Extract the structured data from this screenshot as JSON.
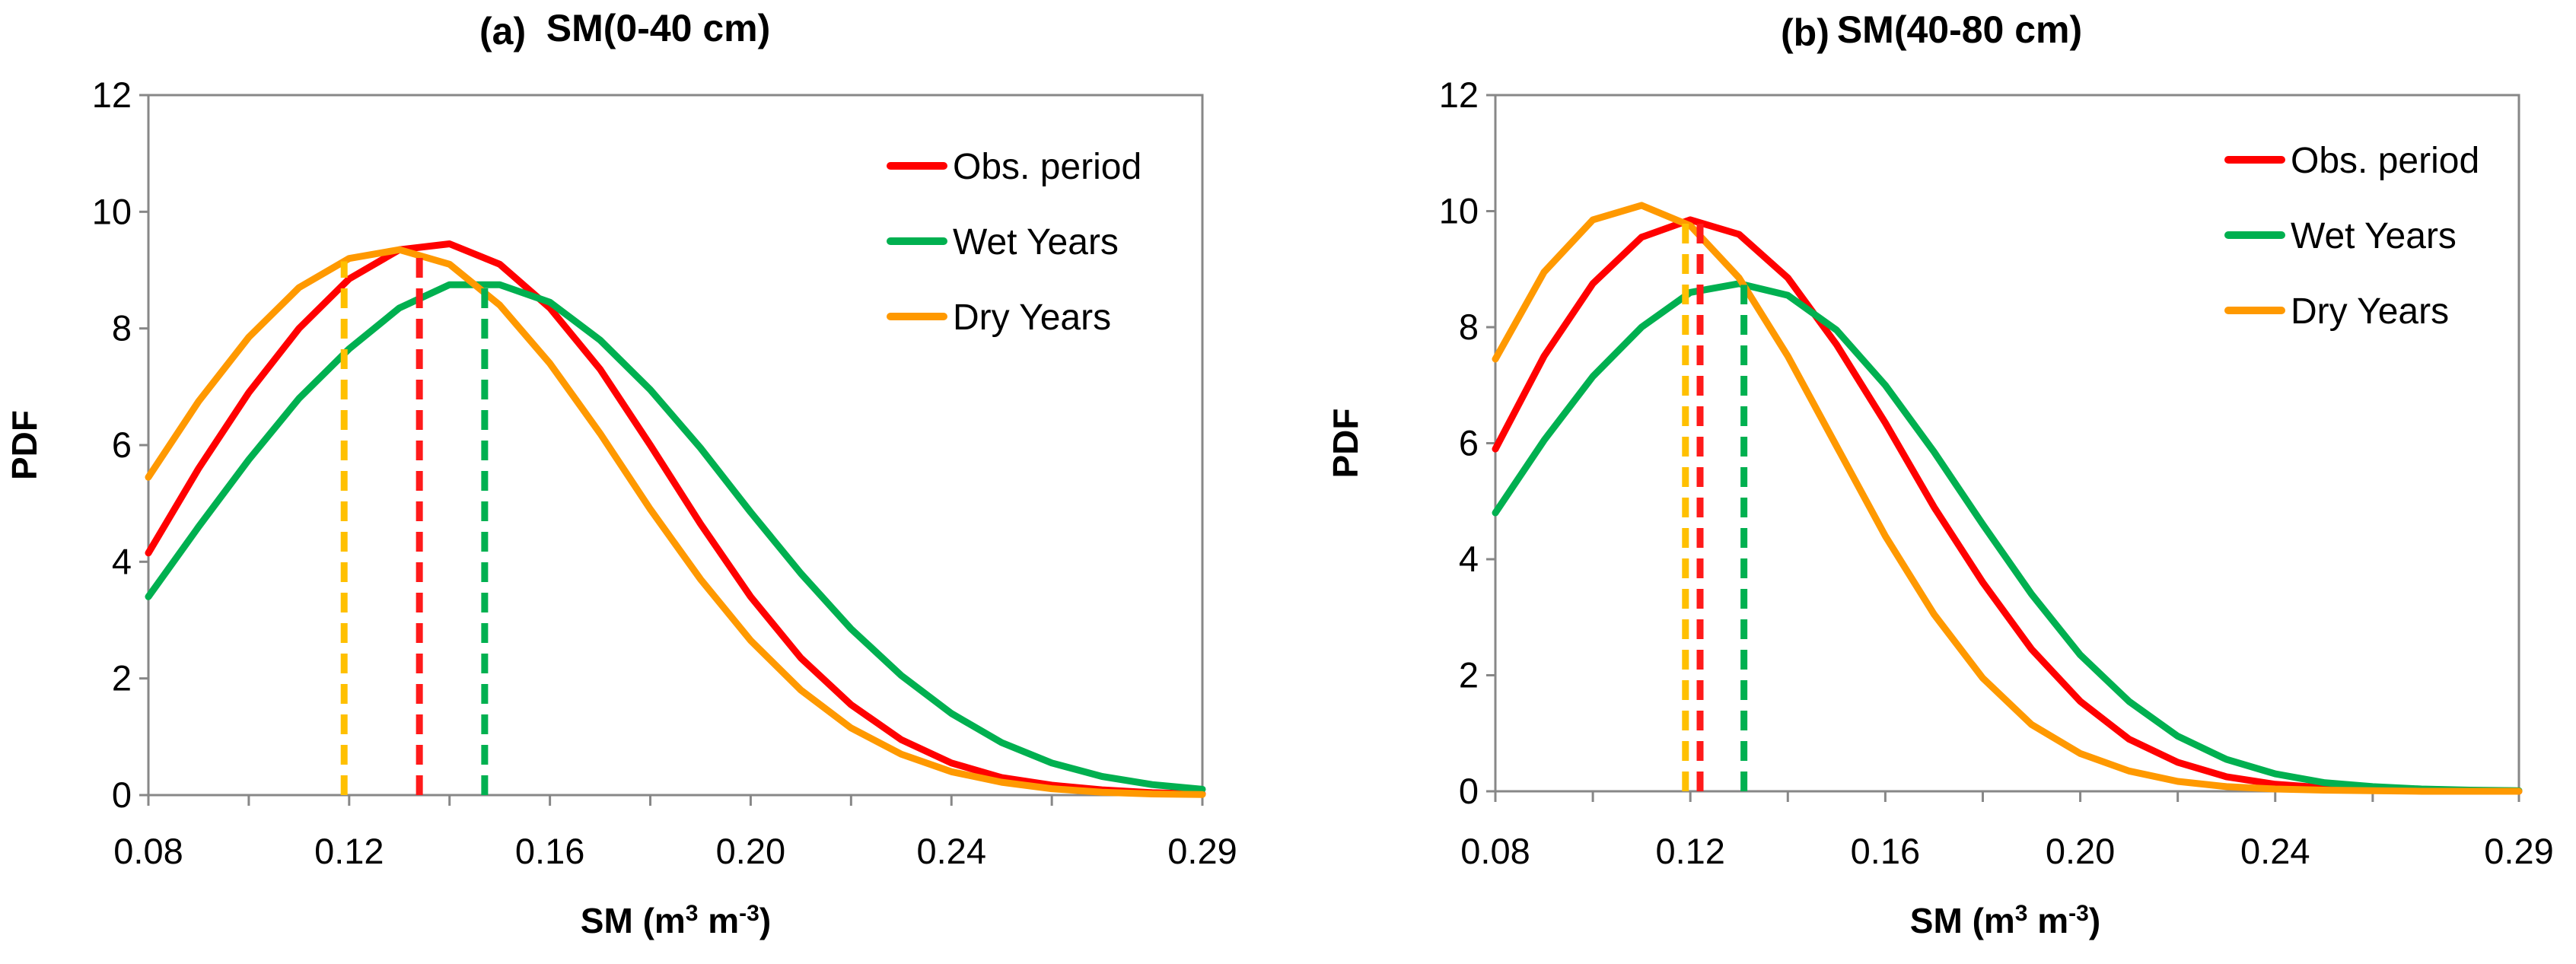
{
  "chart_data": [
    {
      "type": "line",
      "panel_label": "(a)",
      "title": "SM(0-40 cm)",
      "xlabel": "SM (m³ m⁻³)",
      "ylabel": "PDF",
      "xlim": [
        0.08,
        0.29
      ],
      "ylim": [
        0,
        12
      ],
      "x_ticks": [
        0.08,
        0.12,
        0.16,
        0.2,
        0.24,
        0.29
      ],
      "x_tick_labels": [
        "0.08",
        "0.12",
        "0.16",
        "0.20",
        "0.24",
        "0.29"
      ],
      "y_ticks": [
        0,
        2,
        4,
        6,
        8,
        10,
        12
      ],
      "y_tick_labels": [
        "0",
        "2",
        "4",
        "6",
        "8",
        "10",
        "12"
      ],
      "legend_position": "top-right",
      "series": [
        {
          "name": "Obs. period",
          "color": "#ff0000",
          "mean_line": 0.134,
          "mean_color": "#ff1a1a",
          "x": [
            0.08,
            0.09,
            0.1,
            0.11,
            0.12,
            0.13,
            0.14,
            0.15,
            0.16,
            0.17,
            0.18,
            0.19,
            0.2,
            0.21,
            0.22,
            0.23,
            0.24,
            0.25,
            0.26,
            0.27,
            0.28,
            0.29
          ],
          "values": [
            4.15,
            5.6,
            6.9,
            8.0,
            8.85,
            9.35,
            9.45,
            9.1,
            8.35,
            7.3,
            6.0,
            4.65,
            3.4,
            2.35,
            1.55,
            0.95,
            0.55,
            0.3,
            0.17,
            0.09,
            0.04,
            0.02
          ]
        },
        {
          "name": "Wet Years",
          "color": "#00b050",
          "mean_line": 0.147,
          "mean_color": "#00b050",
          "x": [
            0.08,
            0.09,
            0.1,
            0.11,
            0.12,
            0.13,
            0.14,
            0.15,
            0.16,
            0.17,
            0.18,
            0.19,
            0.2,
            0.21,
            0.22,
            0.23,
            0.24,
            0.25,
            0.26,
            0.27,
            0.28,
            0.29
          ],
          "values": [
            3.4,
            4.6,
            5.75,
            6.8,
            7.65,
            8.35,
            8.75,
            8.75,
            8.45,
            7.8,
            6.95,
            5.95,
            4.85,
            3.8,
            2.85,
            2.05,
            1.4,
            0.9,
            0.55,
            0.32,
            0.18,
            0.1
          ]
        },
        {
          "name": "Dry Years",
          "color": "#ff9900",
          "mean_line": 0.119,
          "mean_color": "#ffc000",
          "x": [
            0.08,
            0.09,
            0.1,
            0.11,
            0.12,
            0.13,
            0.14,
            0.15,
            0.16,
            0.17,
            0.18,
            0.19,
            0.2,
            0.21,
            0.22,
            0.23,
            0.24,
            0.25,
            0.26,
            0.27,
            0.28,
            0.29
          ],
          "values": [
            5.45,
            6.75,
            7.85,
            8.7,
            9.2,
            9.35,
            9.1,
            8.4,
            7.4,
            6.2,
            4.9,
            3.7,
            2.65,
            1.8,
            1.15,
            0.7,
            0.4,
            0.22,
            0.11,
            0.05,
            0.02,
            0.01
          ]
        }
      ]
    },
    {
      "type": "line",
      "panel_label": "(b)",
      "title": "SM(40-80 cm)",
      "xlabel": "SM (m³ m⁻³)",
      "ylabel": "PDF",
      "xlim": [
        0.08,
        0.29
      ],
      "ylim": [
        0,
        12
      ],
      "x_ticks": [
        0.08,
        0.12,
        0.16,
        0.2,
        0.24,
        0.29
      ],
      "x_tick_labels": [
        "0.08",
        "0.12",
        "0.16",
        "0.20",
        "0.24",
        "0.29"
      ],
      "y_ticks": [
        0,
        2,
        4,
        6,
        8,
        10,
        12
      ],
      "y_tick_labels": [
        "0",
        "2",
        "4",
        "6",
        "8",
        "10",
        "12"
      ],
      "legend_position": "top-right",
      "series": [
        {
          "name": "Obs. period",
          "color": "#ff0000",
          "mean_line": 0.122,
          "mean_color": "#ff1a1a",
          "x": [
            0.08,
            0.09,
            0.1,
            0.11,
            0.12,
            0.13,
            0.14,
            0.15,
            0.16,
            0.17,
            0.18,
            0.19,
            0.2,
            0.21,
            0.22,
            0.23,
            0.24,
            0.25,
            0.26,
            0.27,
            0.28,
            0.29
          ],
          "values": [
            5.9,
            7.5,
            8.75,
            9.55,
            9.85,
            9.6,
            8.85,
            7.7,
            6.35,
            4.9,
            3.6,
            2.45,
            1.55,
            0.9,
            0.5,
            0.25,
            0.12,
            0.06,
            0.03,
            0.01,
            0.0,
            0.0
          ]
        },
        {
          "name": "Wet Years",
          "color": "#00b050",
          "mean_line": 0.131,
          "mean_color": "#00b050",
          "x": [
            0.08,
            0.09,
            0.1,
            0.11,
            0.12,
            0.13,
            0.14,
            0.15,
            0.16,
            0.17,
            0.18,
            0.19,
            0.2,
            0.21,
            0.22,
            0.23,
            0.24,
            0.25,
            0.26,
            0.27,
            0.28,
            0.29
          ],
          "values": [
            4.8,
            6.05,
            7.15,
            8.0,
            8.6,
            8.75,
            8.55,
            7.95,
            7.0,
            5.85,
            4.6,
            3.4,
            2.35,
            1.55,
            0.95,
            0.55,
            0.3,
            0.15,
            0.08,
            0.04,
            0.02,
            0.01
          ]
        },
        {
          "name": "Dry Years",
          "color": "#ff9900",
          "mean_line": 0.119,
          "mean_color": "#ffc000",
          "x": [
            0.08,
            0.09,
            0.1,
            0.11,
            0.12,
            0.13,
            0.14,
            0.15,
            0.16,
            0.17,
            0.18,
            0.19,
            0.2,
            0.21,
            0.22,
            0.23,
            0.24,
            0.25,
            0.26,
            0.27,
            0.28,
            0.29
          ],
          "values": [
            7.45,
            8.95,
            9.85,
            10.1,
            9.75,
            8.85,
            7.5,
            5.95,
            4.4,
            3.05,
            1.95,
            1.15,
            0.65,
            0.35,
            0.17,
            0.08,
            0.04,
            0.02,
            0.01,
            0.0,
            0.0,
            0.0
          ]
        }
      ]
    }
  ]
}
